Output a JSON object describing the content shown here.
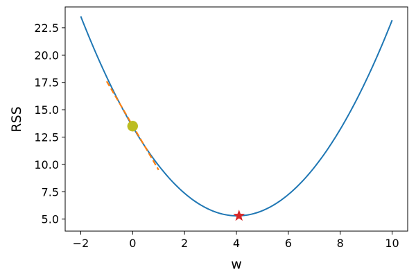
{
  "chart_data": {
    "type": "line",
    "xlabel": "w",
    "ylabel": "RSS",
    "xlim": [
      -2.6,
      10.6
    ],
    "ylim": [
      3.9,
      24.4
    ],
    "xticks": [
      -2,
      0,
      2,
      4,
      6,
      8,
      10
    ],
    "xtick_labels": [
      "−2",
      "0",
      "2",
      "4",
      "6",
      "8",
      "10"
    ],
    "yticks": [
      5.0,
      7.5,
      10.0,
      12.5,
      15.0,
      17.5,
      20.0,
      22.5
    ],
    "ytick_labels": [
      "5.0",
      "7.5",
      "10.0",
      "12.5",
      "15.0",
      "17.5",
      "20.0",
      "22.5"
    ],
    "grid": false,
    "series": [
      {
        "kind": "curve",
        "color": "#1f77b4",
        "x": [
          -2,
          -1,
          0,
          1,
          2,
          3,
          4,
          5,
          6,
          7,
          8,
          9,
          10
        ],
        "y": [
          23.6,
          18.1,
          13.5,
          9.8,
          7.2,
          5.6,
          5.3,
          5.8,
          7.3,
          9.9,
          13.4,
          17.9,
          22.8
        ]
      },
      {
        "kind": "tangent",
        "color": "#ff7f0e",
        "dashed": true,
        "x": [
          -1,
          1
        ],
        "y": [
          17.6,
          9.5
        ]
      }
    ],
    "markers": [
      {
        "kind": "current-point",
        "shape": "circle",
        "color": "#bcbd22",
        "x": 0,
        "y": 13.5
      },
      {
        "kind": "minimum",
        "shape": "star",
        "color": "#d62728",
        "x": 4.1,
        "y": 5.3
      }
    ]
  }
}
